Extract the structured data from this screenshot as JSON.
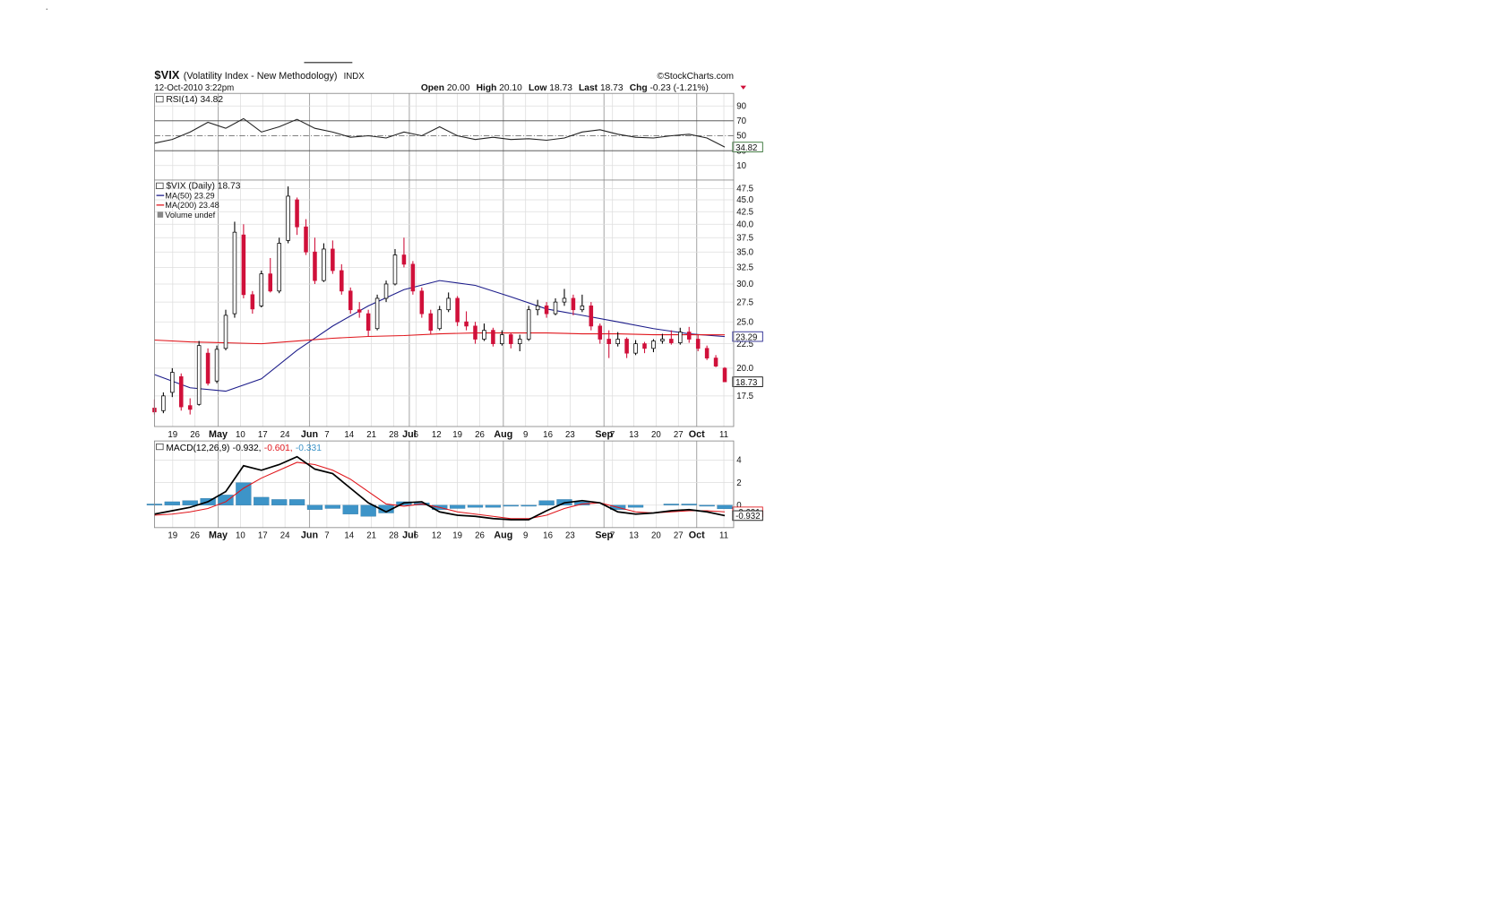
{
  "header": {
    "symbol": "$VIX",
    "description": "(Volatility Index - New Methodology)",
    "exchange": "INDX",
    "timestamp": "12-Oct-2010 3:22pm",
    "source": "©StockCharts.com",
    "quote": [
      {
        "label": "Open",
        "value": "20.00"
      },
      {
        "label": "High",
        "value": "20.10"
      },
      {
        "label": "Low",
        "value": "18.73"
      },
      {
        "label": "Last",
        "value": "18.73"
      },
      {
        "label": "Chg",
        "value": "-0.23 (-1.21%)"
      }
    ]
  },
  "chart_data": [
    {
      "type": "line",
      "name": "RSI(14) 34.82",
      "color": "#222222",
      "last_label": "34.82",
      "ylim": [
        -9.4,
        106.8
      ],
      "yticks": [
        10,
        30,
        50,
        70,
        90
      ],
      "x": [
        0,
        4,
        8,
        12,
        16,
        20,
        24,
        28,
        32,
        36,
        40,
        44,
        48,
        52,
        56,
        60,
        64,
        68,
        72,
        76,
        80,
        84,
        88,
        92,
        96,
        100,
        104,
        108,
        112,
        116,
        120,
        124,
        128
      ],
      "values": [
        40,
        45,
        55,
        68,
        60,
        73,
        55,
        62,
        72,
        60,
        55,
        48,
        50,
        47,
        55,
        50,
        62,
        50,
        45,
        48,
        45,
        46,
        44,
        47,
        55,
        58,
        52,
        48,
        47,
        50,
        52,
        47,
        34.82
      ]
    },
    {
      "type": "candlestick",
      "name": "$VIX (Daily) 18.73",
      "up_color": "#ffffff",
      "down_color": "#d0103a",
      "last_label": "18.73",
      "log_scale": true,
      "ylim": [
        15.1,
        49.5
      ],
      "yticks": [
        17.5,
        {
          "value": 20,
          "label": "20.0"
        },
        22.5,
        {
          "value": 25,
          "label": "25.0"
        },
        27.5,
        {
          "value": 30,
          "label": "30.0"
        },
        32.5,
        {
          "value": 35,
          "label": "35.0"
        },
        37.5,
        {
          "value": 40,
          "label": "40.0"
        },
        42.5,
        {
          "value": 45,
          "label": "45.0"
        },
        47.5
      ],
      "xlim": [
        0,
        130
      ],
      "xticks": [
        {
          "value": 4.1,
          "label": "19"
        },
        {
          "value": 9.1,
          "label": "26"
        },
        {
          "value": 14.3,
          "label": "May"
        },
        {
          "value": 19.3,
          "label": "10"
        },
        {
          "value": 24.3,
          "label": "17"
        },
        {
          "value": 29.3,
          "label": "24"
        },
        {
          "value": 34.8,
          "label": "Jun"
        },
        {
          "value": 38.7,
          "label": "7"
        },
        {
          "value": 43.7,
          "label": "14"
        },
        {
          "value": 48.7,
          "label": "21"
        },
        {
          "value": 53.7,
          "label": "28"
        },
        {
          "value": 57.2,
          "label": "Jul"
        },
        {
          "value": 58.7,
          "label": "6"
        },
        {
          "value": 63.3,
          "label": "12"
        },
        {
          "value": 68,
          "label": "19"
        },
        {
          "value": 73,
          "label": "26"
        },
        {
          "value": 78.3,
          "label": "Aug"
        },
        {
          "value": 83.3,
          "label": "9"
        },
        {
          "value": 88.3,
          "label": "16"
        },
        {
          "value": 93.3,
          "label": "23"
        },
        {
          "value": 100.9,
          "label": "Sep"
        },
        {
          "value": 102.8,
          "label": "7"
        },
        {
          "value": 107.6,
          "label": "13"
        },
        {
          "value": 112.6,
          "label": "20"
        },
        {
          "value": 117.6,
          "label": "27"
        },
        {
          "value": 121.7,
          "label": "Oct"
        },
        {
          "value": 127.8,
          "label": "11"
        }
      ],
      "x": [
        0,
        2,
        4,
        6,
        8,
        10,
        12,
        14,
        16,
        18,
        20,
        22,
        24,
        26,
        28,
        30,
        32,
        34,
        36,
        38,
        40,
        42,
        44,
        46,
        48,
        50,
        52,
        54,
        56,
        58,
        60,
        62,
        64,
        66,
        68,
        70,
        72,
        74,
        76,
        78,
        80,
        82,
        84,
        86,
        88,
        90,
        92,
        94,
        96,
        98,
        100,
        102,
        104,
        106,
        108,
        110,
        112,
        114,
        116,
        118,
        120,
        122,
        124,
        126,
        128
      ],
      "open": [
        16.5,
        16.3,
        17.8,
        19.2,
        16.7,
        16.8,
        21.5,
        18.8,
        22.0,
        26.0,
        38,
        28.5,
        27,
        31.5,
        29,
        37,
        45,
        39.5,
        35,
        30.5,
        35.5,
        32,
        29,
        26.5,
        26,
        24.2,
        28,
        30,
        34.5,
        33,
        29,
        26,
        24.2,
        26.5,
        28,
        25,
        24.5,
        23,
        24,
        22.5,
        23.5,
        22.5,
        23,
        26.5,
        27,
        26,
        27.5,
        28,
        26.5,
        27,
        24.5,
        23,
        22.5,
        23,
        21.5,
        22.5,
        22,
        22.8,
        23,
        22.6,
        23.8,
        23,
        22,
        21,
        20.0
      ],
      "high": [
        17.2,
        17.8,
        20.0,
        19.5,
        17.3,
        22.8,
        22.0,
        22.3,
        26.5,
        40.5,
        40,
        29,
        32,
        34,
        37.5,
        48,
        45.5,
        41,
        37.5,
        36.5,
        37,
        33,
        29.5,
        27.5,
        26.5,
        28.5,
        30.5,
        35.5,
        37.5,
        33.5,
        29.5,
        26.5,
        27,
        28.8,
        28.3,
        26.3,
        25,
        24.8,
        24.3,
        24,
        23.7,
        23.5,
        27,
        27.8,
        27.5,
        28,
        29.3,
        28.5,
        28.5,
        27.5,
        24.8,
        24,
        23.8,
        23.2,
        22.9,
        22.7,
        23,
        23.6,
        24,
        24.3,
        24.4,
        23.5,
        22.3,
        21.3,
        20.1
      ],
      "low": [
        16.0,
        16.1,
        17.4,
        16.3,
        16.0,
        16.7,
        18.4,
        18.6,
        21.8,
        25.5,
        28,
        26,
        26.8,
        28.8,
        28.7,
        36.5,
        38,
        34.5,
        30,
        30.3,
        31.5,
        28.5,
        26,
        25.5,
        23.3,
        24,
        27.5,
        29.8,
        32.5,
        28.5,
        25.5,
        23.6,
        24,
        26.2,
        24.5,
        24,
        22.5,
        22.8,
        22.2,
        22.3,
        22,
        21.7,
        22.8,
        25.8,
        25.5,
        25.8,
        27,
        25.8,
        26.2,
        24,
        22.5,
        21,
        22.2,
        21,
        21.3,
        21.5,
        21.6,
        22.5,
        22.4,
        22.4,
        22.6,
        21.7,
        20.8,
        20.1,
        18.73
      ],
      "close": [
        16.2,
        17.5,
        19.6,
        16.6,
        16.4,
        22.3,
        18.6,
        21.9,
        25.8,
        38.5,
        28.5,
        26.6,
        31.5,
        29,
        36.5,
        45.8,
        39.5,
        35,
        30.5,
        35.5,
        32,
        29,
        26.5,
        26.2,
        24,
        28,
        30,
        34.5,
        33,
        29,
        26,
        24,
        26.5,
        28,
        25,
        24.5,
        23,
        24,
        22.5,
        23.5,
        22.5,
        23,
        26.5,
        27,
        26,
        27.5,
        28,
        26.5,
        27,
        24.5,
        23,
        22.5,
        23,
        21.5,
        22.5,
        22,
        22.8,
        23,
        22.6,
        23.8,
        23,
        22,
        21,
        20.2,
        18.73
      ],
      "overlays": [
        {
          "name": "MA(50) 23.29",
          "color": "#1c1c8a",
          "last_label": "23.29",
          "x": [
            0,
            8,
            16,
            24,
            32,
            40,
            48,
            56,
            64,
            72,
            80,
            88,
            96,
            104,
            112,
            120,
            128
          ],
          "values": [
            19.4,
            18.2,
            17.9,
            19.0,
            21.8,
            24.5,
            27.0,
            29.2,
            30.5,
            29.8,
            28.2,
            26.6,
            25.8,
            25.0,
            24.2,
            23.6,
            23.29
          ]
        },
        {
          "name": "MA(200) 23.48",
          "color": "#e0151b",
          "x": [
            0,
            8,
            16,
            24,
            32,
            40,
            48,
            56,
            64,
            72,
            80,
            88,
            96,
            104,
            112,
            120,
            128
          ],
          "values": [
            22.9,
            22.7,
            22.6,
            22.5,
            22.8,
            23.1,
            23.3,
            23.4,
            23.6,
            23.7,
            23.7,
            23.7,
            23.6,
            23.6,
            23.5,
            23.5,
            23.48
          ]
        }
      ],
      "volume_note": "Volume undef"
    },
    {
      "type": "macd",
      "name": "MACD(12,26,9)",
      "ylim": [
        -2,
        5.7
      ],
      "yticks": [
        0,
        2,
        4
      ],
      "xlim": [
        0,
        130
      ],
      "xticks": [
        {
          "value": 4.1,
          "label": "19"
        },
        {
          "value": 9.1,
          "label": "26"
        },
        {
          "value": 14.3,
          "label": "May"
        },
        {
          "value": 19.3,
          "label": "10"
        },
        {
          "value": 24.3,
          "label": "17"
        },
        {
          "value": 29.3,
          "label": "24"
        },
        {
          "value": 34.8,
          "label": "Jun"
        },
        {
          "value": 38.7,
          "label": "7"
        },
        {
          "value": 43.7,
          "label": "14"
        },
        {
          "value": 48.7,
          "label": "21"
        },
        {
          "value": 53.7,
          "label": "28"
        },
        {
          "value": 57.2,
          "label": "Jul"
        },
        {
          "value": 58.7,
          "label": "6"
        },
        {
          "value": 63.3,
          "label": "12"
        },
        {
          "value": 68,
          "label": "19"
        },
        {
          "value": 73,
          "label": "26"
        },
        {
          "value": 78.3,
          "label": "Aug"
        },
        {
          "value": 83.3,
          "label": "9"
        },
        {
          "value": 88.3,
          "label": "16"
        },
        {
          "value": 93.3,
          "label": "23"
        },
        {
          "value": 100.9,
          "label": "Sep"
        },
        {
          "value": 102.8,
          "label": "7"
        },
        {
          "value": 107.6,
          "label": "13"
        },
        {
          "value": 112.6,
          "label": "20"
        },
        {
          "value": 117.6,
          "label": "27"
        },
        {
          "value": 121.7,
          "label": "Oct"
        },
        {
          "value": 127.8,
          "label": "11"
        }
      ],
      "x": [
        0,
        4,
        8,
        12,
        16,
        20,
        24,
        28,
        32,
        36,
        40,
        44,
        48,
        52,
        56,
        60,
        64,
        68,
        72,
        76,
        80,
        84,
        88,
        92,
        96,
        100,
        104,
        108,
        112,
        116,
        120,
        124,
        128
      ],
      "series": [
        {
          "name": "-0.331",
          "kind": "histogram",
          "color": "#3d94c8",
          "values": [
            0.1,
            0.3,
            0.4,
            0.6,
            0.9,
            2.0,
            0.7,
            0.5,
            0.5,
            -0.4,
            -0.3,
            -0.8,
            -1.0,
            -0.7,
            0.3,
            0.2,
            -0.4,
            -0.3,
            -0.2,
            -0.2,
            -0.1,
            -0.1,
            0.4,
            0.5,
            0.3,
            0,
            -0.4,
            -0.2,
            0,
            0.1,
            0.1,
            -0.1,
            -0.331
          ]
        },
        {
          "name": "-0.601,",
          "color": "#e0151b",
          "last_label": "-0.601",
          "values": [
            -0.9,
            -0.8,
            -0.6,
            -0.3,
            0.3,
            1.5,
            2.4,
            3.1,
            3.8,
            3.6,
            3.1,
            2.3,
            1.2,
            0.1,
            -0.1,
            0.1,
            -0.2,
            -0.6,
            -0.8,
            -1.0,
            -1.2,
            -1.2,
            -0.9,
            -0.3,
            0.1,
            0.2,
            -0.2,
            -0.6,
            -0.7,
            -0.6,
            -0.5,
            -0.5,
            -0.601
          ]
        },
        {
          "name": "-0.932,",
          "color": "#000000",
          "last_label": "-0.932",
          "values": [
            -0.8,
            -0.5,
            -0.2,
            0.3,
            1.2,
            3.5,
            3.1,
            3.6,
            4.3,
            3.2,
            2.8,
            1.5,
            0.2,
            -0.6,
            0.2,
            0.3,
            -0.6,
            -0.9,
            -1.0,
            -1.2,
            -1.3,
            -1.3,
            -0.5,
            0.2,
            0.4,
            0.2,
            -0.6,
            -0.8,
            -0.7,
            -0.5,
            -0.4,
            -0.6,
            -0.932
          ]
        }
      ]
    }
  ]
}
